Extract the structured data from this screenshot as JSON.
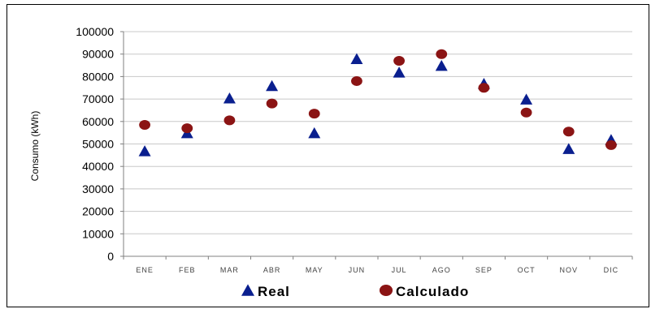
{
  "chart_data": {
    "type": "scatter",
    "categories": [
      "ENE",
      "FEB",
      "MAR",
      "ABR",
      "MAY",
      "JUN",
      "JUL",
      "AGO",
      "SEP",
      "OCT",
      "NOV",
      "DIC"
    ],
    "series": [
      {
        "name": "Real",
        "marker": "triangle",
        "color": "#0a1f8f",
        "values": [
          46500,
          54500,
          70000,
          75500,
          54500,
          87500,
          81500,
          84500,
          76500,
          69500,
          47500,
          51500
        ]
      },
      {
        "name": "Calculado",
        "marker": "circle",
        "color": "#8b1414",
        "values": [
          58500,
          57000,
          60500,
          68000,
          63500,
          78000,
          87000,
          90000,
          75000,
          64000,
          55500,
          49500
        ]
      }
    ],
    "title": "",
    "xlabel": "",
    "ylabel": "Consumo (kWh)",
    "ylim": [
      0,
      100000
    ],
    "yticks": [
      0,
      10000,
      20000,
      30000,
      40000,
      50000,
      60000,
      70000,
      80000,
      90000,
      100000
    ],
    "grid": true,
    "legend_position": "bottom"
  }
}
